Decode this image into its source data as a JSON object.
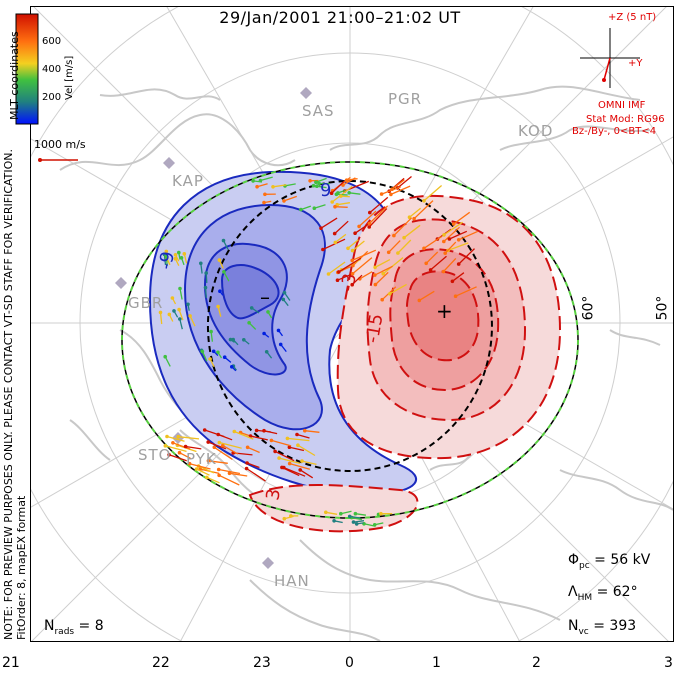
{
  "title": "29/Jan/2001 21:00–21:02 UT",
  "notice_line1": "NOTE: FOR PREVIEW PURPOSES ONLY. PLEASE CONTACT VT-SD STAFF FOR VERIFICATION.",
  "notice_line2": "FitOrder: 8, mapEX format",
  "coord_label": "MLT coordinates",
  "colorbar": {
    "label": "Vel [m/s]",
    "ticks": [
      "600",
      "400",
      "200"
    ]
  },
  "reference_vector": "1000 m/s",
  "imf": {
    "axis_z": "+Z (5 nT)",
    "axis_y": "+Y",
    "source": "OMNI IMF",
    "stat_mod": "Stat Mod: RG96",
    "condition": "Bz-/By-, 0<BT<4"
  },
  "stations": [
    "SAS",
    "PGR",
    "KOD",
    "KAP",
    "GBR",
    "STO",
    "PYK",
    "HAN"
  ],
  "contour_labels": [
    "-9",
    "9",
    "-3",
    "3",
    "-15",
    "-",
    "+"
  ],
  "latitude_labels": [
    "60°",
    "50°"
  ],
  "mlt_axis": [
    "21",
    "22",
    "23",
    "0",
    "1",
    "2",
    "3"
  ],
  "stats": {
    "phi_pc": "56 kV",
    "lambda_hm": "62°",
    "n_vc": "393",
    "n_rads": "8"
  },
  "colors": {
    "blue_cell": "#2a2ad0",
    "red_cell": "#dd1111",
    "vel_high": "#d01000",
    "vel_mid": "#f0c020",
    "vel_low": "#0020e0"
  }
}
